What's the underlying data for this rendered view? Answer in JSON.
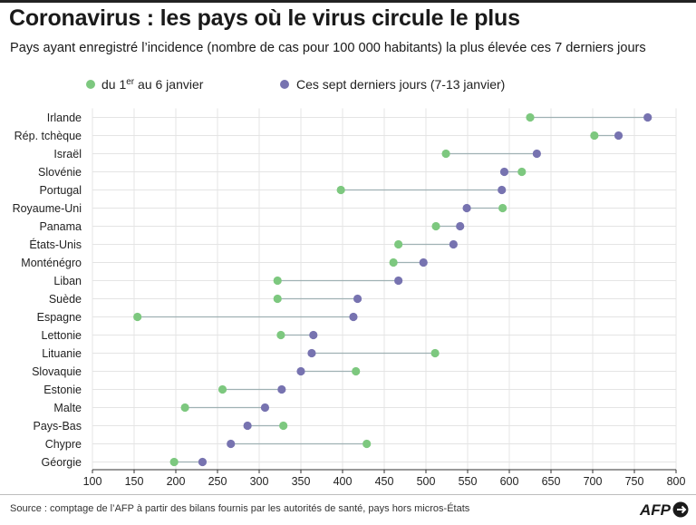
{
  "title": "Coronavirus : les pays où le virus circule le plus",
  "subtitle": "Pays ayant enregistré l’incidence (nombre de cas pour 100 000 habitants) la plus élevée ces 7 derniers jours",
  "legend": {
    "series1_pre": "du 1",
    "series1_sup": "er",
    "series1_post": " au 6 janvier",
    "series2": "Ces sept derniers jours (7-13 janvier)"
  },
  "colors": {
    "series1": "#7dc87f",
    "series2": "#7773b0",
    "connector": "#9fb1b3",
    "grid": "#e4e4e4",
    "axis": "#333333"
  },
  "source": "Source : comptage de l’AFP à partir des bilans fournis par les autorités de santé, pays hors micros-États",
  "logo": {
    "text": "AFP"
  },
  "chart_data": {
    "type": "dumbbell",
    "title": "Coronavirus : les pays où le virus circule le plus",
    "xlabel": "",
    "ylabel": "",
    "xlim": [
      100,
      800
    ],
    "xticks": [
      100,
      150,
      200,
      250,
      300,
      350,
      400,
      450,
      500,
      550,
      600,
      650,
      700,
      750,
      800
    ],
    "categories": [
      "Irlande",
      "Rép. tchèque",
      "Israël",
      "Slovénie",
      "Portugal",
      "Royaume-Uni",
      "Panama",
      "États-Unis",
      "Monténégro",
      "Liban",
      "Suède",
      "Espagne",
      "Lettonie",
      "Lituanie",
      "Slovaquie",
      "Estonie",
      "Malte",
      "Pays-Bas",
      "Chypre",
      "Géorgie"
    ],
    "series": [
      {
        "name": "du 1er au 6 janvier",
        "values": [
          625,
          702,
          524,
          615,
          398,
          592,
          512,
          467,
          461,
          322,
          322,
          154,
          326,
          511,
          416,
          256,
          211,
          329,
          429,
          198
        ]
      },
      {
        "name": "Ces sept derniers jours (7-13 janvier)",
        "values": [
          766,
          731,
          633,
          594,
          591,
          549,
          541,
          533,
          497,
          467,
          418,
          413,
          365,
          363,
          350,
          327,
          307,
          286,
          266,
          232
        ]
      }
    ]
  }
}
